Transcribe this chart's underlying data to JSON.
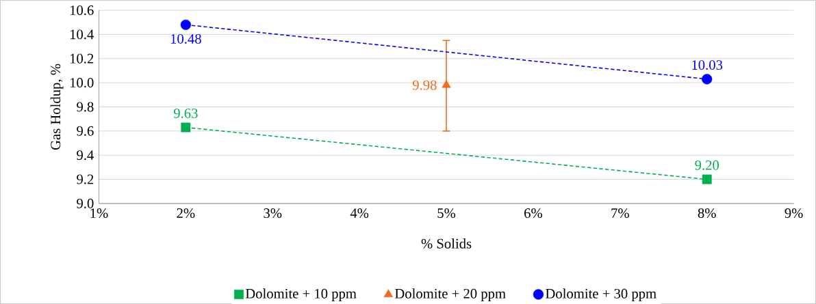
{
  "chart_data": {
    "type": "line",
    "xlabel": "% Solids",
    "ylabel": "Gas Holdup, %",
    "xlim": [
      1,
      9
    ],
    "xticks": [
      {
        "value": 1,
        "label": "1%"
      },
      {
        "value": 2,
        "label": "2%"
      },
      {
        "value": 3,
        "label": "3%"
      },
      {
        "value": 4,
        "label": "4%"
      },
      {
        "value": 5,
        "label": "5%"
      },
      {
        "value": 6,
        "label": "6%"
      },
      {
        "value": 7,
        "label": "7%"
      },
      {
        "value": 8,
        "label": "8%"
      },
      {
        "value": 9,
        "label": "9%"
      }
    ],
    "ylim": [
      9.0,
      10.6
    ],
    "yticks": [
      {
        "value": 9.0,
        "label": "9.0"
      },
      {
        "value": 9.2,
        "label": "9.2"
      },
      {
        "value": 9.4,
        "label": "9.4"
      },
      {
        "value": 9.6,
        "label": "9.6"
      },
      {
        "value": 9.8,
        "label": "9.8"
      },
      {
        "value": 10.0,
        "label": "10.0"
      },
      {
        "value": 10.2,
        "label": "10.2"
      },
      {
        "value": 10.4,
        "label": "10.4"
      },
      {
        "value": 10.6,
        "label": "10.6"
      }
    ],
    "grid": "y",
    "legend": "bottom",
    "series": [
      {
        "name": "Dolomite + 10 ppm",
        "color": "#00b050",
        "marker": "square",
        "line_style": "dashed",
        "x": [
          2,
          8
        ],
        "values": [
          9.63,
          9.2
        ],
        "value_labels": [
          "9.63",
          "9.20"
        ]
      },
      {
        "name": "Dolomite + 20 ppm",
        "type": "scatter",
        "color": "#f26b1d",
        "marker": "triangle",
        "x": [
          5
        ],
        "values": [
          9.98
        ],
        "errors": [
          [
            9.6,
            10.35
          ]
        ],
        "value_labels": [
          "9.98"
        ]
      },
      {
        "name": "Dolomite + 30 ppm",
        "color": "#0000ff",
        "marker": "circle",
        "line_style": "dashed",
        "x": [
          2,
          8
        ],
        "values": [
          10.48,
          10.03
        ],
        "value_labels": [
          "10.48",
          "10.03"
        ]
      }
    ]
  }
}
